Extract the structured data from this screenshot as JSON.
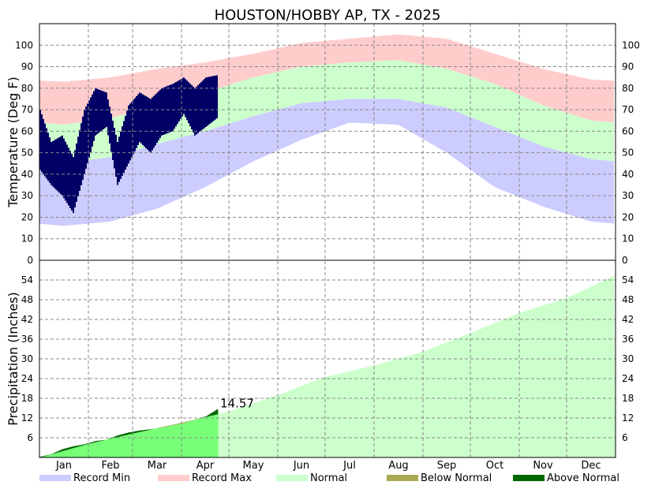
{
  "chart_data": [
    {
      "type": "area",
      "title": "HOUSTON/HOBBY AP, TX - 2025",
      "ylabel": "Temperature (Deg F)",
      "ylim": [
        0,
        110
      ],
      "yticks": [
        0,
        10,
        20,
        30,
        40,
        50,
        60,
        70,
        80,
        90,
        100
      ],
      "grid": true,
      "months": [
        "Jan",
        "Feb",
        "Mar",
        "Apr",
        "May",
        "Jun",
        "Jul",
        "Aug",
        "Sep",
        "Oct",
        "Nov",
        "Dec"
      ],
      "normal_high_monthly": [
        63,
        66,
        72,
        78,
        85,
        90,
        92,
        93,
        89,
        82,
        72,
        65
      ],
      "normal_low_monthly": [
        45,
        48,
        54,
        60,
        67,
        73,
        75,
        75,
        71,
        62,
        53,
        47
      ],
      "record_high_monthly": [
        83,
        85,
        89,
        92,
        96,
        101,
        103,
        105,
        103,
        96,
        89,
        84
      ],
      "record_low_monthly": [
        16,
        18,
        24,
        34,
        46,
        56,
        64,
        63,
        50,
        34,
        25,
        18
      ],
      "observed_2025_weekly": {
        "dates": [
          "Jan 1",
          "Jan 8",
          "Jan 15",
          "Jan 22",
          "Jan 29",
          "Feb 5",
          "Feb 12",
          "Feb 19",
          "Feb 26",
          "Mar 5",
          "Mar 12",
          "Mar 19",
          "Mar 26",
          "Apr 2",
          "Apr 9",
          "Apr 16",
          "Apr 23"
        ],
        "high": [
          70,
          55,
          58,
          48,
          70,
          80,
          78,
          55,
          72,
          78,
          75,
          80,
          82,
          85,
          80,
          85,
          86
        ],
        "low": [
          42,
          35,
          30,
          22,
          40,
          58,
          62,
          35,
          45,
          55,
          50,
          58,
          60,
          68,
          58,
          62,
          66
        ]
      }
    },
    {
      "type": "area",
      "ylabel": "Precipitation (Inches)",
      "ylim": [
        0,
        60
      ],
      "yticks": [
        6,
        12,
        18,
        24,
        30,
        36,
        42,
        48,
        54
      ],
      "grid": true,
      "normal_cumulative_month_start": [
        0,
        4.2,
        7.3,
        10.6,
        14.0,
        19.0,
        24.5,
        28.0,
        32.2,
        37.8,
        44.0,
        48.5
      ],
      "normal_cumulative_year_end": 55.5,
      "actual_cumulative_weekly": {
        "dates": [
          "Jan 1",
          "Jan 8",
          "Jan 15",
          "Jan 22",
          "Jan 29",
          "Feb 5",
          "Feb 12",
          "Feb 19",
          "Feb 26",
          "Mar 5",
          "Mar 12",
          "Mar 19",
          "Mar 26",
          "Apr 2",
          "Apr 9",
          "Apr 16",
          "Apr 23"
        ],
        "values": [
          0.2,
          1.0,
          2.5,
          3.4,
          4.0,
          5.0,
          5.4,
          6.7,
          7.6,
          8.2,
          8.6,
          9.0,
          9.8,
          10.4,
          11.5,
          12.5,
          14.57
        ]
      },
      "latest_total_label": "14.57"
    }
  ],
  "legend": [
    {
      "label": "Record Min",
      "color": "#ccccff"
    },
    {
      "label": "Record Max",
      "color": "#ffcccc"
    },
    {
      "label": "Normal",
      "color": "#ccffcc"
    },
    {
      "label": "Below Normal",
      "color": "#aaaa55"
    },
    {
      "label": "Above Normal",
      "color": "#006600"
    }
  ],
  "colors": {
    "record_min": "#ccccff",
    "record_max": "#ffcccc",
    "normal_temp": "#ccffcc",
    "observed_temp": "#000066",
    "normal_precip": "#ccffcc",
    "actual_precip": "#77ff77",
    "below_normal": "#aaaa55",
    "above_normal": "#006600"
  }
}
